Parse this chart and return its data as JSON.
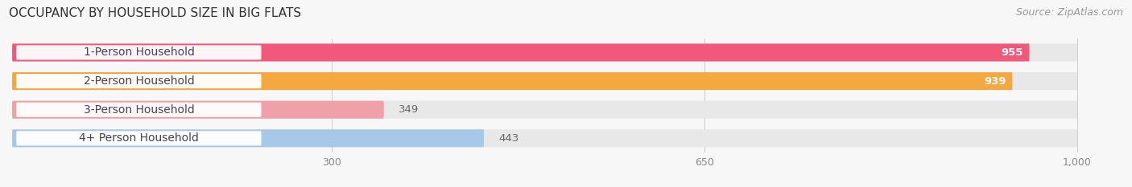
{
  "title": "OCCUPANCY BY HOUSEHOLD SIZE IN BIG FLATS",
  "source": "Source: ZipAtlas.com",
  "categories": [
    "1-Person Household",
    "2-Person Household",
    "3-Person Household",
    "4+ Person Household"
  ],
  "values": [
    955,
    939,
    349,
    443
  ],
  "bar_colors": [
    "#f2587a",
    "#f5a840",
    "#f0a0a8",
    "#a8c8e8"
  ],
  "bg_color": "#e8e8e8",
  "value_labels": [
    "955",
    "939",
    "349",
    "443"
  ],
  "label_inside": [
    true,
    true,
    false,
    false
  ],
  "x_ticks": [
    300,
    650,
    1000
  ],
  "x_tick_labels": [
    "300",
    "650",
    "1,000"
  ],
  "xmax": 1000,
  "title_fontsize": 11,
  "source_fontsize": 9,
  "bar_label_fontsize": 9.5,
  "cat_label_fontsize": 10,
  "tick_fontsize": 9,
  "background_color": "#f7f7f7",
  "label_text_color": "#444455",
  "value_inside_color": "#ffffff",
  "value_outside_color": "#666666"
}
